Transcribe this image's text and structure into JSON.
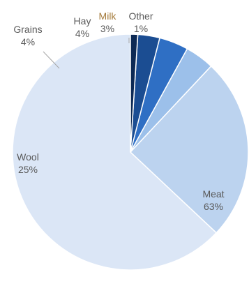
{
  "chart_data": {
    "type": "pie",
    "title": "",
    "slices": [
      {
        "label": "Meat",
        "value": 63,
        "value_label": "63%",
        "color": "#dbe6f6",
        "label_color": "#595959"
      },
      {
        "label": "Wool",
        "value": 25,
        "value_label": "25%",
        "color": "#bcd3ef",
        "label_color": "#595959"
      },
      {
        "label": "Grains",
        "value": 4,
        "value_label": "4%",
        "color": "#9cc0ea",
        "label_color": "#595959"
      },
      {
        "label": "Hay",
        "value": 4,
        "value_label": "4%",
        "color": "#2f6fc4",
        "label_color": "#595959"
      },
      {
        "label": "Milk",
        "value": 3,
        "value_label": "3%",
        "color": "#1b4d92",
        "label_color": "#a47a3a"
      },
      {
        "label": "Other",
        "value": 1,
        "value_label": "1%",
        "color": "#0d2a55",
        "label_color": "#595959"
      }
    ],
    "start": "12 o'clock",
    "direction": "counterclockwise",
    "legend": "none"
  }
}
